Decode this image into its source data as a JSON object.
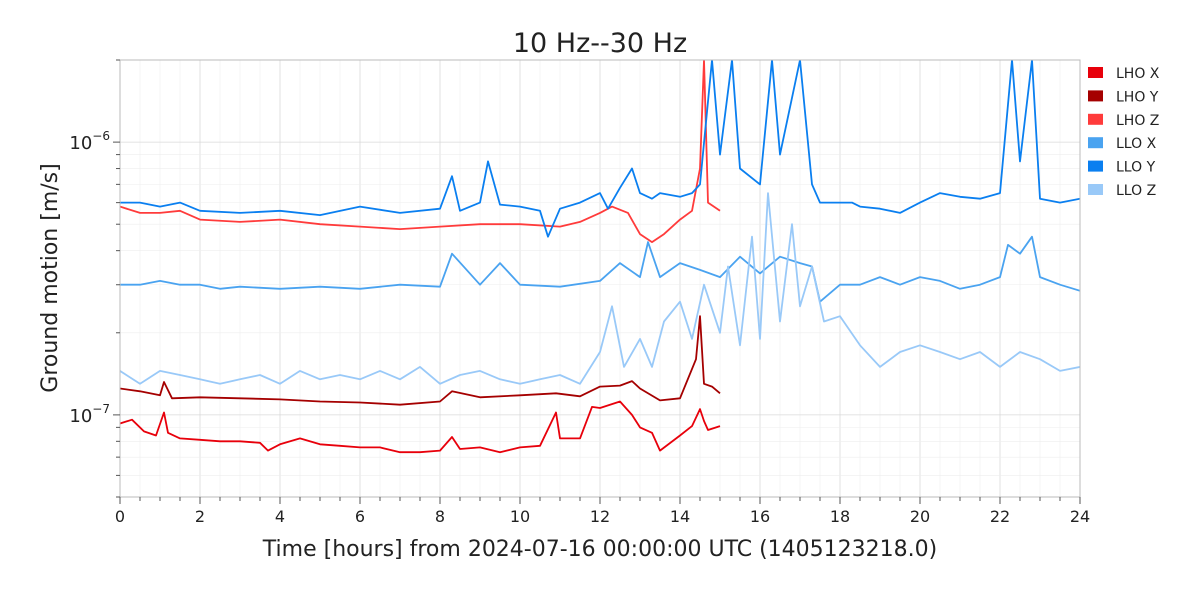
{
  "chart_data": {
    "type": "line",
    "title": "10 Hz--30 Hz",
    "xlabel": "Time [hours] from 2024-07-16 00:00:00 UTC (1405123218.0)",
    "ylabel": "Ground motion [m/s]",
    "xlim": [
      0,
      24
    ],
    "ylim": [
      5e-08,
      2e-06
    ],
    "yscale": "log",
    "grid": true,
    "legend_position": "outside-top-right",
    "x_ticks": [
      {
        "value": 0,
        "label": "0"
      },
      {
        "value": 2,
        "label": "2"
      },
      {
        "value": 4,
        "label": "4"
      },
      {
        "value": 6,
        "label": "6"
      },
      {
        "value": 8,
        "label": "8"
      },
      {
        "value": 10,
        "label": "10"
      },
      {
        "value": 12,
        "label": "12"
      },
      {
        "value": 14,
        "label": "14"
      },
      {
        "value": 16,
        "label": "16"
      },
      {
        "value": 18,
        "label": "18"
      },
      {
        "value": 20,
        "label": "20"
      },
      {
        "value": 22,
        "label": "22"
      },
      {
        "value": 24,
        "label": "24"
      }
    ],
    "y_ticks": [
      {
        "value": 1e-07,
        "base": "10",
        "exp": "−7"
      },
      {
        "value": 1e-06,
        "base": "10",
        "exp": "−6"
      }
    ],
    "series": [
      {
        "name": "LHO X",
        "color": "#e8000b",
        "x": [
          0,
          0.3,
          0.6,
          0.9,
          1.1,
          1.2,
          1.5,
          2,
          2.5,
          3,
          3.5,
          3.7,
          4,
          4.5,
          5,
          5.5,
          6,
          6.5,
          7,
          7.5,
          8,
          8.3,
          8.5,
          9,
          9.5,
          10,
          10.5,
          10.9,
          11,
          11.5,
          11.8,
          12,
          12.5,
          12.8,
          13,
          13.3,
          13.5,
          14,
          14.3,
          14.5,
          14.6,
          14.7,
          15
        ],
        "y": [
          9.3e-08,
          9.6e-08,
          8.7e-08,
          8.4e-08,
          1.02e-07,
          8.6e-08,
          8.2e-08,
          8.1e-08,
          8e-08,
          8e-08,
          7.9e-08,
          7.4e-08,
          7.8e-08,
          8.2e-08,
          7.8e-08,
          7.7e-08,
          7.6e-08,
          7.6e-08,
          7.3e-08,
          7.3e-08,
          7.4e-08,
          8.3e-08,
          7.5e-08,
          7.6e-08,
          7.3e-08,
          7.6e-08,
          7.7e-08,
          1.02e-07,
          8.2e-08,
          8.2e-08,
          1.07e-07,
          1.06e-07,
          1.12e-07,
          1e-07,
          9e-08,
          8.6e-08,
          7.4e-08,
          8.4e-08,
          9.1e-08,
          1.05e-07,
          9.5e-08,
          8.8e-08,
          9.1e-08
        ]
      },
      {
        "name": "LHO Y",
        "color": "#a50000",
        "x": [
          0,
          0.5,
          1,
          1.1,
          1.3,
          2,
          3,
          4,
          5,
          6,
          7,
          8,
          8.3,
          9,
          10,
          10.9,
          11.5,
          12,
          12.5,
          12.8,
          13,
          13.5,
          14,
          14.4,
          14.5,
          14.6,
          14.8,
          15
        ],
        "y": [
          1.25e-07,
          1.22e-07,
          1.18e-07,
          1.32e-07,
          1.15e-07,
          1.16e-07,
          1.15e-07,
          1.14e-07,
          1.12e-07,
          1.11e-07,
          1.09e-07,
          1.12e-07,
          1.22e-07,
          1.16e-07,
          1.18e-07,
          1.2e-07,
          1.17e-07,
          1.27e-07,
          1.28e-07,
          1.33e-07,
          1.25e-07,
          1.13e-07,
          1.15e-07,
          1.6e-07,
          2.3e-07,
          1.3e-07,
          1.27e-07,
          1.2e-07
        ]
      },
      {
        "name": "LHO Z",
        "color": "#ff3b3b",
        "x": [
          0,
          0.5,
          1,
          1.5,
          2,
          3,
          4,
          5,
          6,
          7,
          8,
          9,
          10,
          11,
          11.5,
          12,
          12.3,
          12.7,
          13,
          13.3,
          13.6,
          14,
          14.3,
          14.5,
          14.6,
          14.7,
          15
        ],
        "y": [
          5.8e-07,
          5.5e-07,
          5.5e-07,
          5.6e-07,
          5.2e-07,
          5.1e-07,
          5.2e-07,
          5e-07,
          4.9e-07,
          4.8e-07,
          4.9e-07,
          5e-07,
          5e-07,
          4.9e-07,
          5.1e-07,
          5.5e-07,
          5.8e-07,
          5.5e-07,
          4.6e-07,
          4.3e-07,
          4.6e-07,
          5.2e-07,
          5.6e-07,
          8e-07,
          2e-06,
          6e-07,
          5.6e-07
        ]
      },
      {
        "name": "LLO X",
        "color": "#4aa3f0",
        "x": [
          0,
          0.5,
          1,
          1.5,
          2,
          2.5,
          3,
          4,
          5,
          6,
          7,
          8,
          8.3,
          9,
          9.5,
          10,
          11,
          12,
          12.5,
          13,
          13.2,
          13.5,
          14,
          14.5,
          15,
          15.5,
          16,
          16.5,
          17,
          17.3,
          17.5,
          18,
          18.5,
          19,
          19.5,
          20,
          20.5,
          21,
          21.5,
          22,
          22.2,
          22.5,
          22.8,
          23,
          23.5,
          24
        ],
        "y": [
          3e-07,
          3e-07,
          3.1e-07,
          3e-07,
          3e-07,
          2.9e-07,
          2.95e-07,
          2.9e-07,
          2.95e-07,
          2.9e-07,
          3e-07,
          2.95e-07,
          3.9e-07,
          3e-07,
          3.6e-07,
          3e-07,
          2.95e-07,
          3.1e-07,
          3.6e-07,
          3.2e-07,
          4.3e-07,
          3.2e-07,
          3.6e-07,
          3.4e-07,
          3.2e-07,
          3.8e-07,
          3.3e-07,
          3.8e-07,
          3.6e-07,
          3.5e-07,
          2.6e-07,
          3e-07,
          3e-07,
          3.2e-07,
          3e-07,
          3.2e-07,
          3.1e-07,
          2.9e-07,
          3e-07,
          3.2e-07,
          4.2e-07,
          3.9e-07,
          4.5e-07,
          3.2e-07,
          3e-07,
          2.85e-07
        ]
      },
      {
        "name": "LLO Y",
        "color": "#0a7ff0",
        "x": [
          0,
          0.5,
          1,
          1.5,
          2,
          3,
          4,
          5,
          6,
          7,
          8,
          8.3,
          8.5,
          9,
          9.2,
          9.5,
          10,
          10.5,
          10.7,
          11,
          11.5,
          12,
          12.2,
          12.5,
          12.8,
          13,
          13.3,
          13.5,
          14,
          14.3,
          14.5,
          14.8,
          15,
          15.3,
          15.5,
          16,
          16.3,
          16.5,
          17,
          17.3,
          17.5,
          18,
          18.3,
          18.5,
          19,
          19.5,
          20,
          20.5,
          21,
          21.5,
          22,
          22.3,
          22.5,
          22.8,
          23,
          23.5,
          24
        ],
        "y": [
          6e-07,
          6e-07,
          5.8e-07,
          6e-07,
          5.6e-07,
          5.5e-07,
          5.6e-07,
          5.4e-07,
          5.8e-07,
          5.5e-07,
          5.7e-07,
          7.5e-07,
          5.6e-07,
          6e-07,
          8.5e-07,
          5.9e-07,
          5.8e-07,
          5.6e-07,
          4.5e-07,
          5.7e-07,
          6e-07,
          6.5e-07,
          5.7e-07,
          6.8e-07,
          8e-07,
          6.5e-07,
          6.2e-07,
          6.5e-07,
          6.3e-07,
          6.5e-07,
          7e-07,
          2e-06,
          9e-07,
          2e-06,
          8e-07,
          7e-07,
          2e-06,
          9e-07,
          2e-06,
          7e-07,
          6e-07,
          6e-07,
          6e-07,
          5.8e-07,
          5.7e-07,
          5.5e-07,
          6e-07,
          6.5e-07,
          6.3e-07,
          6.2e-07,
          6.5e-07,
          2e-06,
          8.5e-07,
          2e-06,
          6.2e-07,
          6e-07,
          6.2e-07
        ]
      },
      {
        "name": "LLO Z",
        "color": "#99c9f8",
        "x": [
          0,
          0.5,
          1,
          1.5,
          2,
          2.5,
          3,
          3.5,
          4,
          4.5,
          5,
          5.5,
          6,
          6.5,
          7,
          7.5,
          8,
          8.5,
          9,
          9.5,
          10,
          10.5,
          11,
          11.5,
          12,
          12.3,
          12.6,
          13,
          13.3,
          13.6,
          14,
          14.3,
          14.6,
          15,
          15.2,
          15.5,
          15.8,
          16,
          16.2,
          16.5,
          16.8,
          17,
          17.3,
          17.6,
          18,
          18.5,
          19,
          19.5,
          20,
          20.5,
          21,
          21.5,
          22,
          22.5,
          23,
          23.5,
          24
        ],
        "y": [
          1.45e-07,
          1.3e-07,
          1.45e-07,
          1.4e-07,
          1.35e-07,
          1.3e-07,
          1.35e-07,
          1.4e-07,
          1.3e-07,
          1.45e-07,
          1.35e-07,
          1.4e-07,
          1.35e-07,
          1.45e-07,
          1.35e-07,
          1.5e-07,
          1.3e-07,
          1.4e-07,
          1.45e-07,
          1.35e-07,
          1.3e-07,
          1.35e-07,
          1.4e-07,
          1.3e-07,
          1.7e-07,
          2.5e-07,
          1.5e-07,
          1.9e-07,
          1.5e-07,
          2.2e-07,
          2.6e-07,
          1.9e-07,
          3e-07,
          2e-07,
          3.5e-07,
          1.8e-07,
          4.5e-07,
          1.9e-07,
          6.5e-07,
          2.2e-07,
          5e-07,
          2.5e-07,
          3.5e-07,
          2.2e-07,
          2.3e-07,
          1.8e-07,
          1.5e-07,
          1.7e-07,
          1.8e-07,
          1.7e-07,
          1.6e-07,
          1.7e-07,
          1.5e-07,
          1.7e-07,
          1.6e-07,
          1.45e-07,
          1.5e-07
        ]
      }
    ]
  }
}
